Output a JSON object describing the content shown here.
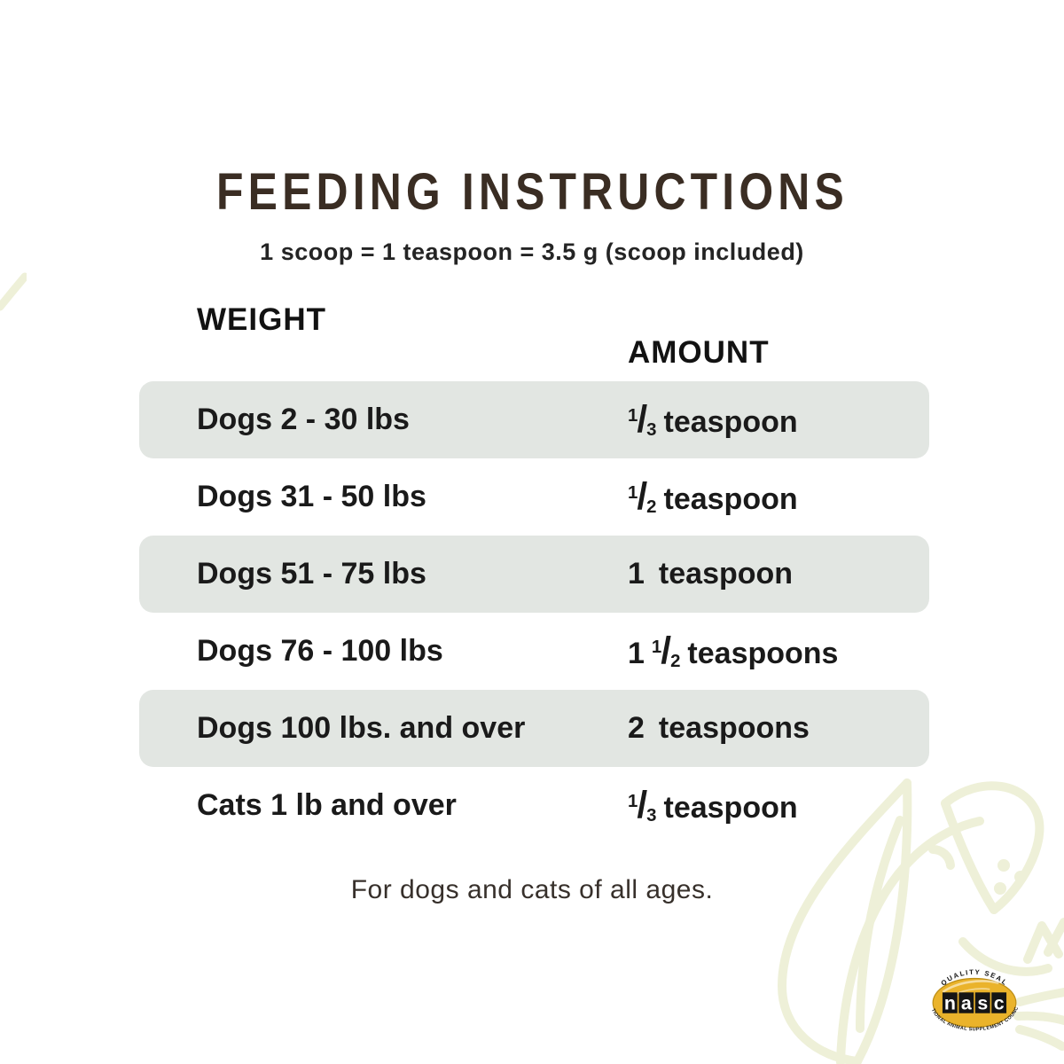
{
  "title": {
    "text": "FEEDING INSTRUCTIONS"
  },
  "subtitle": {
    "text": "1 scoop = 1 teaspoon = 3.5 g (scoop included)"
  },
  "table": {
    "headers": {
      "weight": "WEIGHT",
      "amount": "AMOUNT"
    },
    "rows": [
      {
        "weight": "Dogs 2 - 30 lbs",
        "amount": {
          "text": "1/3 teaspoon",
          "whole": "",
          "numerator": "1",
          "denominator": "3",
          "unit": "teaspoon"
        }
      },
      {
        "weight": "Dogs 31 - 50 lbs",
        "amount": {
          "text": "1/2 teaspoon",
          "whole": "",
          "numerator": "1",
          "denominator": "2",
          "unit": "teaspoon"
        }
      },
      {
        "weight": "Dogs 51 - 75 lbs",
        "amount": {
          "text": "1 teaspoon",
          "whole": "1",
          "numerator": "",
          "denominator": "",
          "unit": "teaspoon"
        }
      },
      {
        "weight": "Dogs 76 - 100 lbs",
        "amount": {
          "text": "1 1/2 teaspoons",
          "whole": "1",
          "numerator": "1",
          "denominator": "2",
          "unit": "teaspoons"
        }
      },
      {
        "weight": "Dogs 100 lbs. and over",
        "amount": {
          "text": "2 teaspoons",
          "whole": "2",
          "numerator": "",
          "denominator": "",
          "unit": "teaspoons"
        }
      },
      {
        "weight": "Cats 1 lb and over",
        "amount": {
          "text": "1/3 teaspoon",
          "whole": "",
          "numerator": "1",
          "denominator": "3",
          "unit": "teaspoon"
        }
      }
    ]
  },
  "footer": {
    "text": "For dogs and cats of all ages."
  },
  "nasc_seal": {
    "top_text": "QUALITY SEAL",
    "letters": "nasc",
    "bottom_text": "NATIONAL ANIMAL SUPPLEMENT COUNCIL"
  },
  "colors": {
    "title_brown": "#3a2d23",
    "row_shade": "#e2e6e2",
    "watermark": "#eef0d8",
    "seal_gold": "#eab32b",
    "seal_black": "#151515"
  }
}
